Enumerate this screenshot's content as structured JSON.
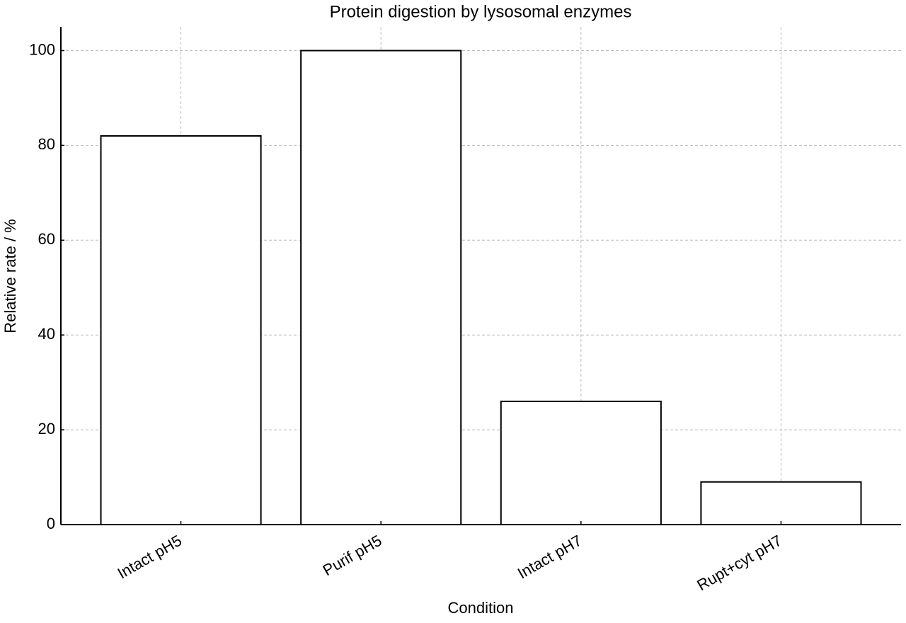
{
  "chart_data": {
    "type": "bar",
    "title": "Protein digestion by lysosomal enzymes",
    "x_label": "Condition",
    "y_label": "Relative rate / %",
    "categories": [
      "Intact pH5",
      "Purif pH5",
      "Intact pH7",
      "Rupt+cyt pH7"
    ],
    "values": [
      82,
      100,
      26,
      9
    ],
    "color": "#ffffff",
    "edge_color": "#000000",
    "ylim": [
      0,
      105
    ],
    "yticks": [
      0,
      20,
      40,
      60,
      80,
      100
    ],
    "grid": true
  }
}
